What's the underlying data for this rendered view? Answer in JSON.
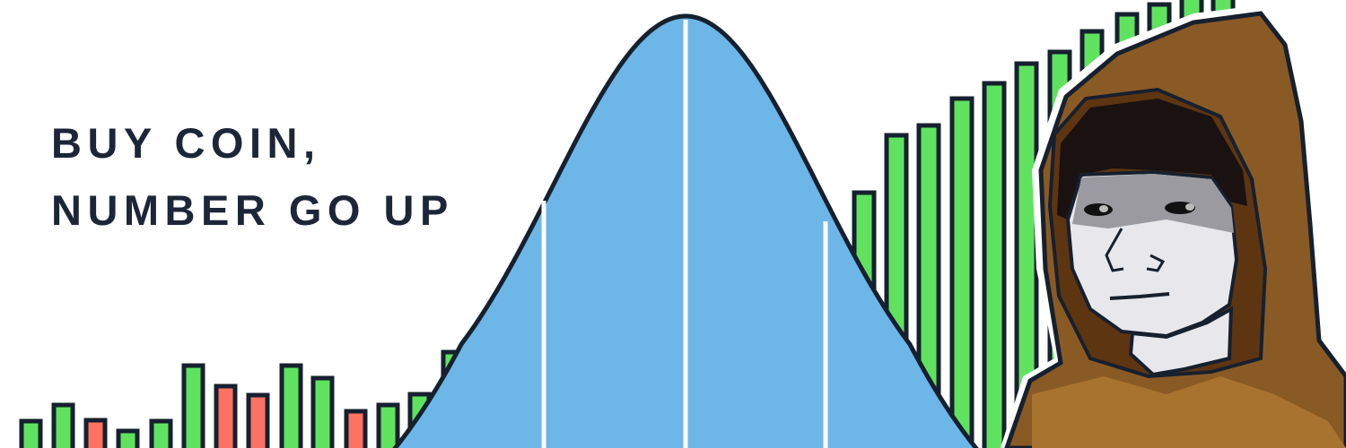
{
  "headline": {
    "line1": "BUY COIN,",
    "line2": "NUMBER GO UP"
  },
  "colors": {
    "text": "#1c2638",
    "up": "#5fe35f",
    "down": "#ff7262",
    "outline": "#16202e",
    "curve_fill": "#6db6e8",
    "hood": "#8a5a24"
  },
  "bars_left": [
    "up",
    "up",
    "down",
    "up",
    "up",
    "up",
    "down",
    "down",
    "up",
    "up",
    "down",
    "up",
    "up",
    "up"
  ],
  "bars_right": [
    "up",
    "up",
    "up",
    "up",
    "up",
    "up",
    "up",
    "up",
    "up",
    "up",
    "up",
    "up"
  ]
}
